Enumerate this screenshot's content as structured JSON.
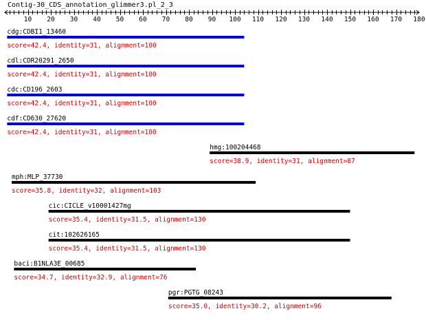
{
  "title": "Contig-30_CDS_annotation_glimmer3.pl_2_3",
  "axis": {
    "min": 0,
    "max": 180,
    "labels": [
      10,
      20,
      30,
      40,
      50,
      60,
      70,
      80,
      90,
      100,
      110,
      120,
      130,
      140,
      150,
      160,
      170,
      180
    ]
  },
  "colors": {
    "axis": "#000000",
    "score_text": "#cc0000",
    "highlight_bar": "#0000cc",
    "normal_bar": "#000000"
  },
  "hits": [
    {
      "label": "cdg:CDBI1_13460",
      "start": 1,
      "end": 104,
      "score": "score=42.4, identity=31, alignment=100",
      "highlight": true
    },
    {
      "label": "cdl:CDR20291_2650",
      "start": 1,
      "end": 104,
      "score": "score=42.4, identity=31, alignment=100",
      "highlight": true
    },
    {
      "label": "cdc:CD196_2603",
      "start": 1,
      "end": 104,
      "score": "score=42.4, identity=31, alignment=100",
      "highlight": true
    },
    {
      "label": "cdf:CD630_27620",
      "start": 1,
      "end": 104,
      "score": "score=42.4, identity=31, alignment=100",
      "highlight": true
    },
    {
      "label": "hmg:100204468",
      "start": 89,
      "end": 178,
      "score": "score=38.9, identity=31, alignment=87",
      "highlight": false
    },
    {
      "label": "mph:MLP_37730",
      "start": 3,
      "end": 109,
      "score": "score=35.8, identity=32, alignment=103",
      "highlight": false
    },
    {
      "label": "cic:CICLE_v10001427mg",
      "start": 19,
      "end": 150,
      "score": "score=35.4, identity=31.5, alignment=130",
      "highlight": false
    },
    {
      "label": "cit:102626165",
      "start": 19,
      "end": 150,
      "score": "score=35.4, identity=31.5, alignment=130",
      "highlight": false
    },
    {
      "label": "baci:B1NLA3E_00685",
      "start": 4,
      "end": 83,
      "score": "score=34.7, identity=32.9, alignment=76",
      "highlight": false
    },
    {
      "label": "pgr:PGTG_08243",
      "start": 71,
      "end": 168,
      "score": "score=35.0, identity=30.2, alignment=96",
      "highlight": false
    }
  ]
}
